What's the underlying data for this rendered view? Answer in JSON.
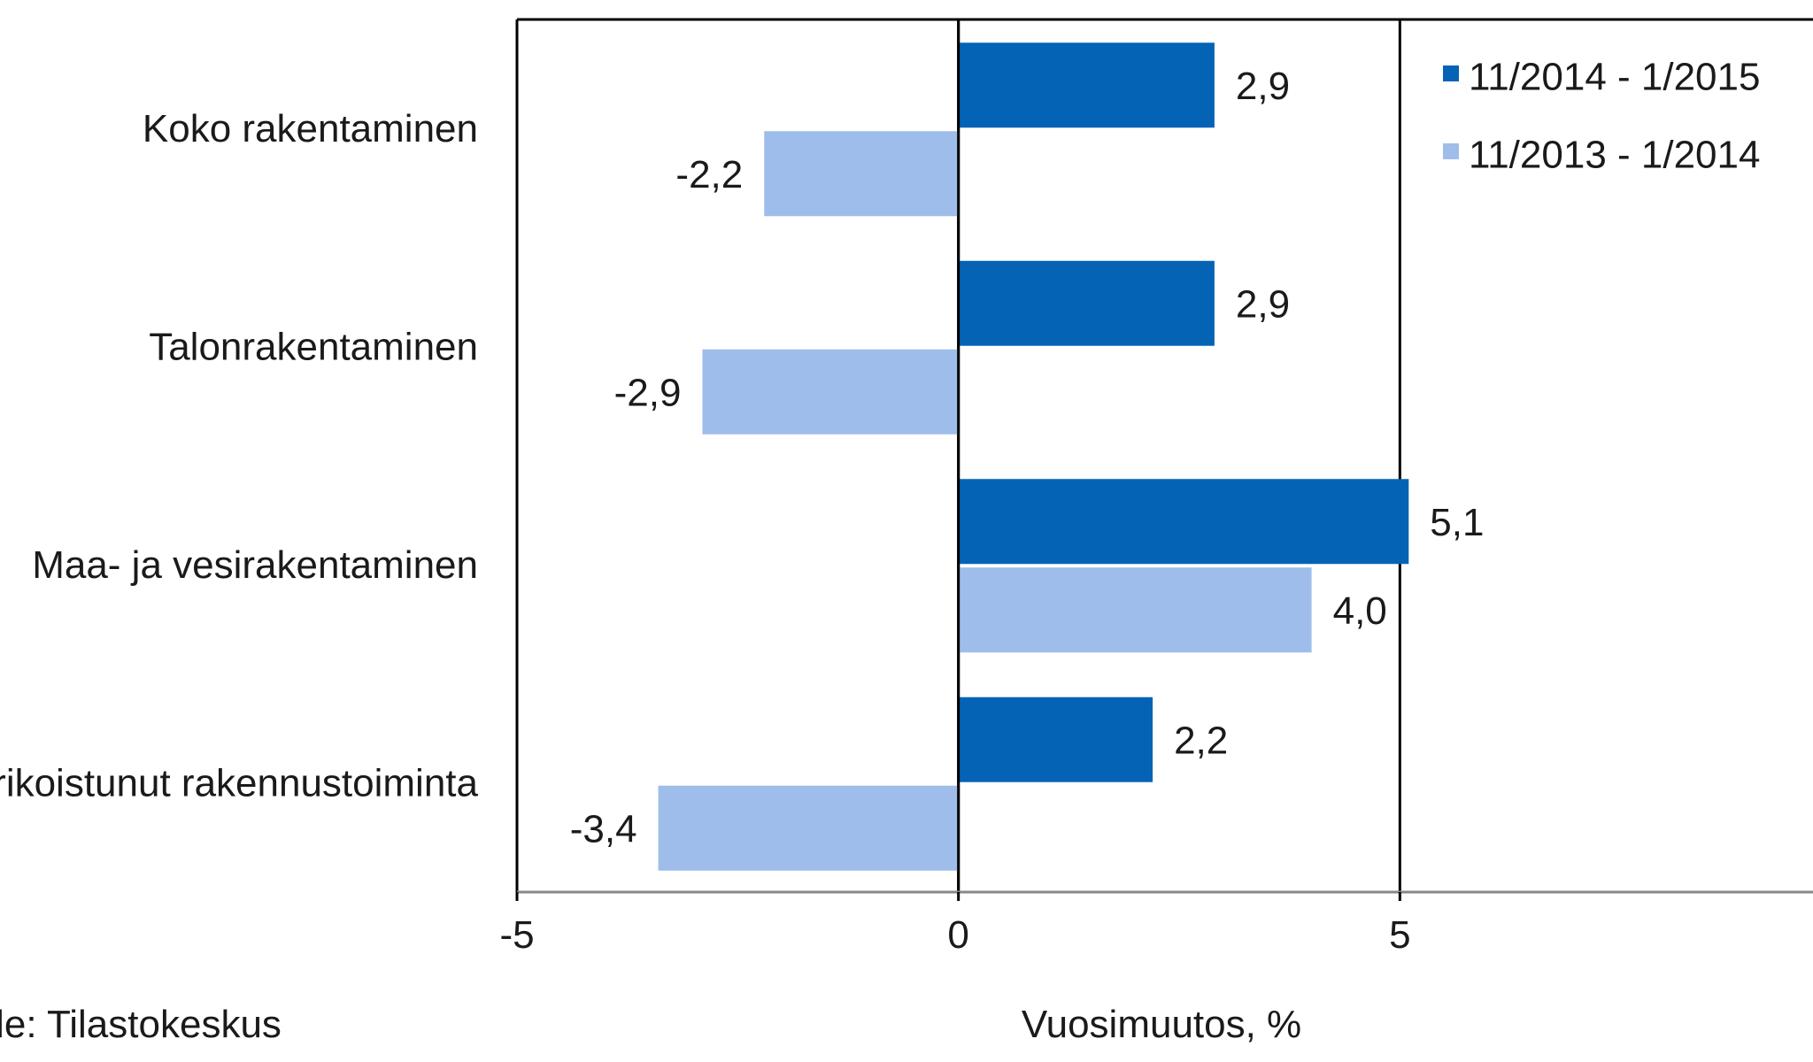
{
  "chart_data": {
    "type": "bar",
    "orientation": "horizontal",
    "categories": [
      "Koko rakentaminen",
      "Talonrakentaminen",
      "Maa- ja vesirakentaminen",
      "Erikoistunut rakennustoiminta"
    ],
    "series": [
      {
        "name": "11/2014 - 1/2015",
        "color": "#0563b6",
        "values": [
          2.9,
          2.9,
          5.1,
          2.2
        ],
        "value_labels": [
          "2,9",
          "2,9",
          "5,1",
          "2,2"
        ]
      },
      {
        "name": "11/2013 - 1/2014",
        "color": "#9fbdea",
        "values": [
          -2.2,
          -2.9,
          4.0,
          -3.4
        ],
        "value_labels": [
          "-2,2",
          "-2,9",
          "4,0",
          "-3,4"
        ]
      }
    ],
    "xlim": [
      -5,
      10
    ],
    "xticks": [
      -5,
      0,
      5
    ],
    "xtick_labels": [
      "-5",
      "0",
      "5"
    ],
    "xlabel": "Vuosimuutos, %",
    "ylabel": "",
    "grid": "vertical major gridlines",
    "legend_position": "top-right",
    "source": "Lähde: Tilastokeskus"
  }
}
